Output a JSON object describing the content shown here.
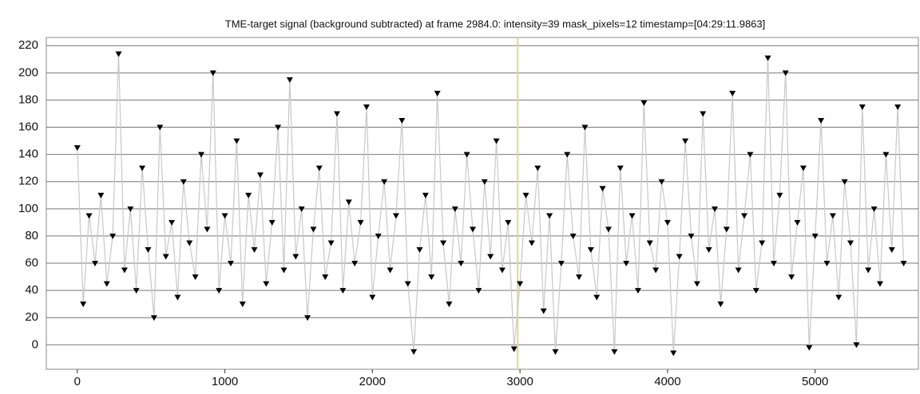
{
  "chart_data": {
    "type": "line",
    "title": "TME-target signal (background subtracted) at frame 2984.0: intensity=39 mask_pixels=12 timestamp=[04:29:11.9863]",
    "x": [
      0,
      40,
      80,
      120,
      160,
      200,
      240,
      280,
      320,
      360,
      400,
      440,
      480,
      520,
      560,
      600,
      640,
      680,
      720,
      760,
      800,
      840,
      880,
      920,
      960,
      1000,
      1040,
      1080,
      1120,
      1160,
      1200,
      1240,
      1280,
      1320,
      1360,
      1400,
      1440,
      1480,
      1520,
      1560,
      1600,
      1640,
      1680,
      1720,
      1760,
      1800,
      1840,
      1880,
      1920,
      1960,
      2000,
      2040,
      2080,
      2120,
      2160,
      2200,
      2240,
      2280,
      2320,
      2360,
      2400,
      2440,
      2480,
      2520,
      2560,
      2600,
      2640,
      2680,
      2720,
      2760,
      2800,
      2840,
      2880,
      2920,
      2960,
      3000,
      3040,
      3080,
      3120,
      3160,
      3200,
      3240,
      3280,
      3320,
      3360,
      3400,
      3440,
      3480,
      3520,
      3560,
      3600,
      3640,
      3680,
      3720,
      3760,
      3800,
      3840,
      3880,
      3920,
      3960,
      4000,
      4040,
      4080,
      4120,
      4160,
      4200,
      4240,
      4280,
      4320,
      4360,
      4400,
      4440,
      4480,
      4520,
      4560,
      4600,
      4640,
      4680,
      4720,
      4760,
      4800,
      4840,
      4880,
      4920,
      4960,
      5000,
      5040,
      5080,
      5120,
      5160,
      5200,
      5240,
      5280,
      5320,
      5360,
      5400,
      5440,
      5480,
      5520,
      5560,
      5600
    ],
    "series": [
      {
        "name": "intensity",
        "color": "#000000",
        "line_color": "#c8c8c8",
        "values": [
          145,
          30,
          95,
          60,
          110,
          45,
          80,
          214,
          55,
          100,
          40,
          130,
          70,
          20,
          160,
          65,
          90,
          35,
          120,
          75,
          50,
          140,
          85,
          200,
          40,
          95,
          60,
          150,
          30,
          110,
          70,
          125,
          45,
          90,
          160,
          55,
          195,
          65,
          100,
          20,
          85,
          130,
          50,
          75,
          170,
          40,
          105,
          60,
          90,
          175,
          35,
          80,
          120,
          55,
          95,
          165,
          45,
          -5,
          70,
          110,
          50,
          185,
          75,
          30,
          100,
          60,
          140,
          85,
          40,
          120,
          65,
          150,
          55,
          90,
          -3,
          45,
          110,
          75,
          130,
          25,
          95,
          -5,
          60,
          140,
          80,
          50,
          160,
          70,
          35,
          115,
          85,
          -5,
          130,
          60,
          95,
          40,
          178,
          75,
          55,
          120,
          90,
          -6,
          65,
          150,
          80,
          45,
          170,
          70,
          100,
          30,
          85,
          185,
          55,
          95,
          140,
          40,
          75,
          211,
          60,
          110,
          200,
          50,
          90,
          130,
          -2,
          80,
          165,
          60,
          95,
          35,
          120,
          75,
          0,
          175,
          55,
          100,
          45,
          140,
          70,
          175,
          60
        ]
      }
    ],
    "xlim": [
      -210,
      5700
    ],
    "ylim": [
      -18,
      226
    ],
    "xticks": [
      0,
      1000,
      2000,
      3000,
      4000,
      5000
    ],
    "yticks": [
      0,
      20,
      40,
      60,
      80,
      100,
      120,
      140,
      160,
      180,
      200,
      220
    ],
    "grid": true,
    "marker_x": 2984,
    "marker_color": "#d9dc8c"
  }
}
